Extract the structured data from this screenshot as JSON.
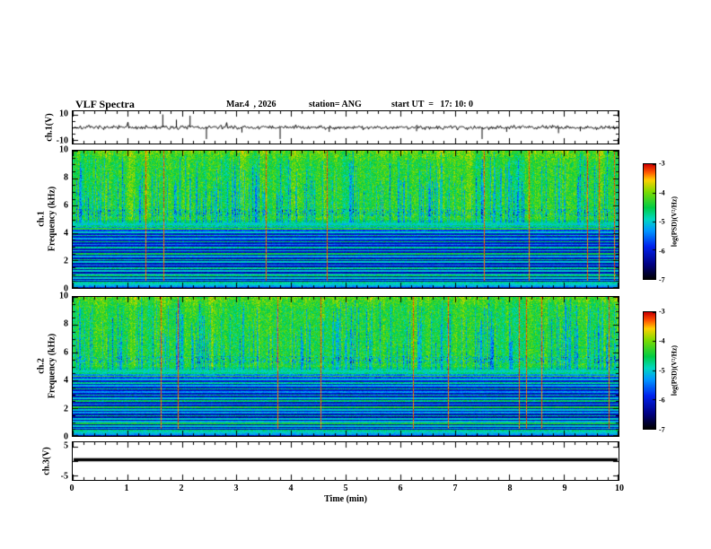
{
  "header": {
    "title": "VLF Spectra",
    "date": "Mar.4  , 2026",
    "station": "station= ANG",
    "start_ut": "start UT  =   17: 10: 0"
  },
  "xaxis": {
    "label": "Time (min)",
    "min": 0,
    "max": 10,
    "major_ticks": [
      0,
      1,
      2,
      3,
      4,
      5,
      6,
      7,
      8,
      9,
      10
    ],
    "minor_interval": 0.2
  },
  "colormap": {
    "stops": [
      [
        0.0,
        "#000006"
      ],
      [
        0.12,
        "#00007f"
      ],
      [
        0.28,
        "#0022ee"
      ],
      [
        0.42,
        "#0099ff"
      ],
      [
        0.52,
        "#00d8c0"
      ],
      [
        0.62,
        "#00cc44"
      ],
      [
        0.76,
        "#7fdc00"
      ],
      [
        0.86,
        "#ffd000"
      ],
      [
        0.93,
        "#ff5500"
      ],
      [
        1.0,
        "#cc0000"
      ]
    ]
  },
  "chart_data": [
    {
      "type": "line",
      "name": "ch1-voltage",
      "ylabel": "ch.1(V)",
      "ylim": [
        -12.5,
        12.5
      ],
      "ytick_labels": [
        10,
        -10
      ],
      "ymajor": [
        10,
        0,
        -10
      ],
      "yminor": [
        5,
        -5
      ],
      "seed": 7,
      "noise_amp": 1.5,
      "spikes": [
        {
          "t": 1.65,
          "a": 10
        },
        {
          "t": 1.9,
          "a": 6
        },
        {
          "t": 2.15,
          "a": 9
        },
        {
          "t": 2.45,
          "a": -9
        },
        {
          "t": 3.1,
          "a": -4
        },
        {
          "t": 3.8,
          "a": -9
        },
        {
          "t": 4.7,
          "a": -3.5
        },
        {
          "t": 6.3,
          "a": -3
        },
        {
          "t": 7.5,
          "a": -9
        },
        {
          "t": 7.95,
          "a": -3.5
        },
        {
          "t": 8.9,
          "a": -4.5
        },
        {
          "t": 9.3,
          "a": -3
        }
      ]
    },
    {
      "type": "heatmap",
      "name": "ch1-spectrogram",
      "ylabel": [
        "ch.1",
        "Frequency (kHz)"
      ],
      "ylim": [
        0,
        10
      ],
      "ytick_labels": [
        0,
        2,
        4,
        6,
        8,
        10
      ],
      "yminor_interval": 0.5,
      "seed": 101,
      "colorbar": {
        "label": "log(PSD)(V²/Hz)",
        "ticks": [
          -3,
          -4,
          -5,
          -6,
          -7
        ],
        "min": -7,
        "max": -3
      },
      "profile": {
        "green_top": 0.66,
        "green_floor_khz": 5.0,
        "trans_lo_khz": 4.15,
        "low_base": 0.16,
        "speckle_band": [
          5.25,
          5.75
        ],
        "red_streak_prob": 0.013,
        "dip_prob": 0.25,
        "lines": [
          {
            "f": 4.52,
            "v": 0.58
          },
          {
            "f": 4.3,
            "v": 0.66
          },
          {
            "f": 4.06,
            "v": 0.5
          },
          {
            "f": 3.82,
            "v": 0.56
          },
          {
            "f": 3.6,
            "v": 0.46
          },
          {
            "f": 3.38,
            "v": 0.6
          },
          {
            "f": 3.16,
            "v": 0.42
          },
          {
            "f": 2.95,
            "v": 0.56
          },
          {
            "f": 2.72,
            "v": 0.5
          },
          {
            "f": 2.5,
            "v": 0.62
          },
          {
            "f": 2.28,
            "v": 0.46
          },
          {
            "f": 2.06,
            "v": 0.58
          },
          {
            "f": 1.88,
            "v": 0.5
          },
          {
            "f": 1.66,
            "v": 0.44
          },
          {
            "f": 1.45,
            "v": 0.56
          },
          {
            "f": 1.24,
            "v": 0.5
          },
          {
            "f": 1.02,
            "v": 0.46
          },
          {
            "f": 0.92,
            "v": 0.6
          },
          {
            "f": 0.72,
            "v": 0.5
          },
          {
            "f": 0.55,
            "v": 0.44
          },
          {
            "f": 0.4,
            "v": 0.56
          },
          {
            "f": 0.25,
            "v": 0.5
          },
          {
            "f": 0.12,
            "v": 0.44
          }
        ]
      }
    },
    {
      "type": "heatmap",
      "name": "ch2-spectrogram",
      "ylabel": [
        "ch.2",
        "Frequency (kHz)"
      ],
      "ylim": [
        0,
        10
      ],
      "ytick_labels": [
        0,
        2,
        4,
        6,
        8,
        10
      ],
      "yminor_interval": 0.5,
      "seed": 202,
      "colorbar": {
        "label": "log(PSD)(V²/Hz)",
        "ticks": [
          -3,
          -4,
          -5,
          -6,
          -7
        ],
        "min": -7,
        "max": -3
      },
      "profile": {
        "green_top": 0.66,
        "green_floor_khz": 5.0,
        "trans_lo_khz": 4.15,
        "low_base": 0.16,
        "speckle_band": [
          5.25,
          5.75
        ],
        "red_streak_prob": 0.013,
        "dip_prob": 0.25,
        "lines": [
          {
            "f": 4.65,
            "v": 0.5
          },
          {
            "f": 4.52,
            "v": 0.58
          },
          {
            "f": 4.3,
            "v": 0.68
          },
          {
            "f": 4.06,
            "v": 0.5
          },
          {
            "f": 3.82,
            "v": 0.56
          },
          {
            "f": 3.6,
            "v": 0.46
          },
          {
            "f": 3.38,
            "v": 0.6
          },
          {
            "f": 3.16,
            "v": 0.42
          },
          {
            "f": 2.95,
            "v": 0.56
          },
          {
            "f": 2.72,
            "v": 0.5
          },
          {
            "f": 2.5,
            "v": 0.6
          },
          {
            "f": 2.28,
            "v": 0.46
          },
          {
            "f": 2.06,
            "v": 0.64
          },
          {
            "f": 1.88,
            "v": 0.5
          },
          {
            "f": 1.66,
            "v": 0.44
          },
          {
            "f": 1.45,
            "v": 0.56
          },
          {
            "f": 1.24,
            "v": 0.5
          },
          {
            "f": 1.02,
            "v": 0.46
          },
          {
            "f": 0.92,
            "v": 0.64
          },
          {
            "f": 0.72,
            "v": 0.5
          },
          {
            "f": 0.55,
            "v": 0.44
          },
          {
            "f": 0.4,
            "v": 0.56
          },
          {
            "f": 0.25,
            "v": 0.5
          },
          {
            "f": 0.12,
            "v": 0.44
          }
        ]
      }
    },
    {
      "type": "line",
      "name": "ch3-voltage",
      "ylabel": "ch.3(V)",
      "ylim": [
        -6.5,
        6.5
      ],
      "ytick_labels": [
        5,
        -5
      ],
      "ymajor": [
        5,
        0,
        -5
      ],
      "yminor": [],
      "flat_value": 0.5,
      "line_width": 3.5
    }
  ]
}
